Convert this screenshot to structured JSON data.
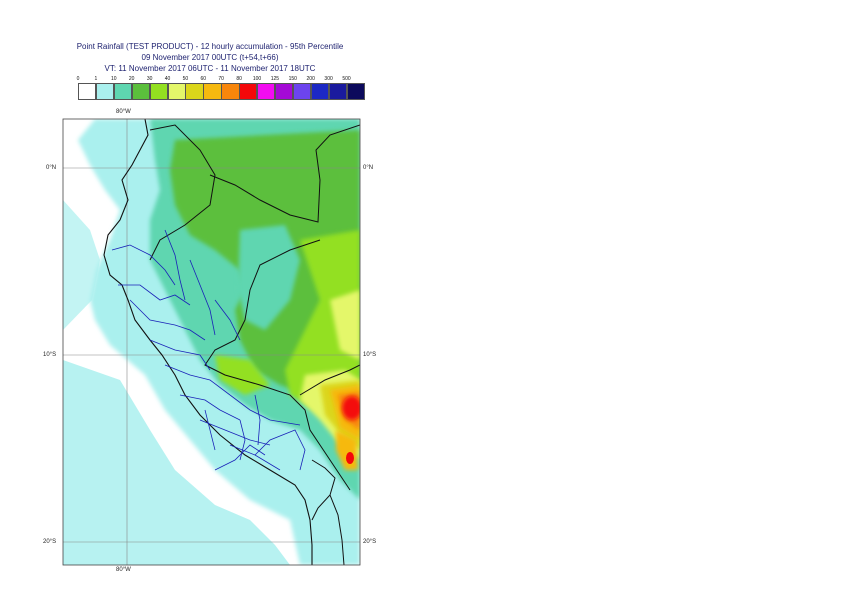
{
  "title": {
    "line1": "Point Rainfall (TEST PRODUCT) - 12 hourly accumulation - 95th Percentile",
    "line2": "09 November 2017 00UTC (t+54,t+66)",
    "line3": "VT: 11 November 2017 06UTC - 11 November 2017 18UTC"
  },
  "legend": {
    "labels": [
      "0",
      "1",
      "10",
      "20",
      "30",
      "40",
      "50",
      "60",
      "70",
      "80",
      "100",
      "125",
      "150",
      "200",
      "300",
      "500"
    ],
    "colors": [
      "#ffffff",
      "#aaf0ee",
      "#5ed6b0",
      "#5bbf3c",
      "#93e020",
      "#e4f76a",
      "#dbd61a",
      "#f6b90f",
      "#f8860b",
      "#f4080a",
      "#f20cf1",
      "#a40ad6",
      "#6c44ee",
      "#1c28c4",
      "#1a1a9e",
      "#0c0a5c"
    ]
  },
  "axes": {
    "lon_top": "80°W",
    "lon_bottom": "80°W",
    "lat_0_left": "0°N",
    "lat_0_right": "0°N",
    "lat_10_left": "10°S",
    "lat_10_right": "10°S",
    "lat_20_left": "20°S",
    "lat_20_right": "20°S"
  }
}
